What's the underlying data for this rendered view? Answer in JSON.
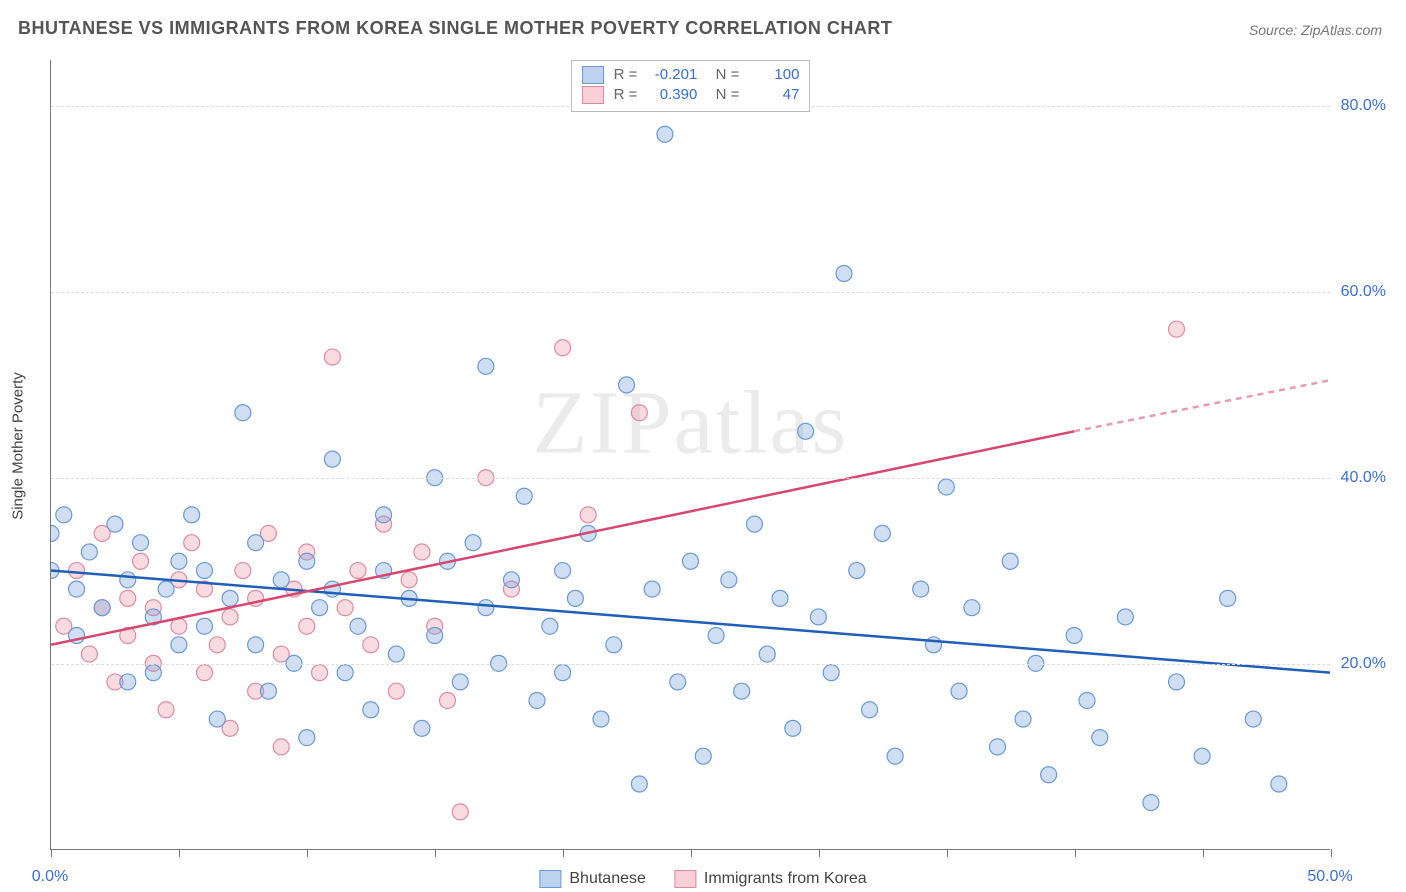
{
  "title": "BHUTANESE VS IMMIGRANTS FROM KOREA SINGLE MOTHER POVERTY CORRELATION CHART",
  "source": "Source: ZipAtlas.com",
  "watermark": "ZIPatlas",
  "y_axis_title": "Single Mother Poverty",
  "chart": {
    "type": "scatter",
    "xlim": [
      0,
      50
    ],
    "ylim": [
      0,
      85
    ],
    "x_ticks_at": [
      0,
      5,
      10,
      15,
      20,
      25,
      30,
      35,
      40,
      45,
      50
    ],
    "x_tick_labels": {
      "0": "0.0%",
      "50": "50.0%"
    },
    "y_gridlines": [
      20,
      40,
      60,
      80
    ],
    "y_tick_labels": {
      "20": "20.0%",
      "40": "40.0%",
      "60": "60.0%",
      "80": "80.0%"
    },
    "background_color": "#ffffff",
    "grid_color": "#dddddd",
    "axis_color": "#777777",
    "marker_radius": 8,
    "marker_stroke_width": 1.2,
    "trend_line_width": 2.5
  },
  "series": {
    "bhutanese": {
      "label": "Bhutanese",
      "fill": "rgba(120,160,220,0.35)",
      "stroke": "#6a9ad4",
      "swatch_fill": "#bcd2ef",
      "swatch_border": "#6a9ad4",
      "R": "-0.201",
      "N": "100",
      "trend": {
        "x1": 0,
        "y1": 30,
        "x2": 50,
        "y2": 19,
        "color": "#1f5fb8",
        "dash": false
      },
      "points": [
        [
          0,
          30
        ],
        [
          0,
          34
        ],
        [
          0.5,
          36
        ],
        [
          1,
          28
        ],
        [
          1,
          23
        ],
        [
          1.5,
          32
        ],
        [
          2,
          26
        ],
        [
          2.5,
          35
        ],
        [
          3,
          29
        ],
        [
          3,
          18
        ],
        [
          3.5,
          33
        ],
        [
          4,
          25
        ],
        [
          4,
          19
        ],
        [
          4.5,
          28
        ],
        [
          5,
          31
        ],
        [
          5,
          22
        ],
        [
          5.5,
          36
        ],
        [
          6,
          24
        ],
        [
          6,
          30
        ],
        [
          6.5,
          14
        ],
        [
          7,
          27
        ],
        [
          7.5,
          47
        ],
        [
          8,
          22
        ],
        [
          8,
          33
        ],
        [
          8.5,
          17
        ],
        [
          9,
          29
        ],
        [
          9.5,
          20
        ],
        [
          10,
          31
        ],
        [
          10,
          12
        ],
        [
          10.5,
          26
        ],
        [
          11,
          28
        ],
        [
          11,
          42
        ],
        [
          11.5,
          19
        ],
        [
          12,
          24
        ],
        [
          12.5,
          15
        ],
        [
          13,
          30
        ],
        [
          13,
          36
        ],
        [
          13.5,
          21
        ],
        [
          14,
          27
        ],
        [
          14.5,
          13
        ],
        [
          15,
          40
        ],
        [
          15,
          23
        ],
        [
          15.5,
          31
        ],
        [
          16,
          18
        ],
        [
          16.5,
          33
        ],
        [
          17,
          52
        ],
        [
          17,
          26
        ],
        [
          17.5,
          20
        ],
        [
          18,
          29
        ],
        [
          18.5,
          38
        ],
        [
          19,
          16
        ],
        [
          19.5,
          24
        ],
        [
          20,
          30
        ],
        [
          20,
          19
        ],
        [
          20.5,
          27
        ],
        [
          21,
          34
        ],
        [
          21.5,
          14
        ],
        [
          22,
          22
        ],
        [
          22.5,
          50
        ],
        [
          23,
          7
        ],
        [
          23.5,
          28
        ],
        [
          24,
          77
        ],
        [
          24.5,
          18
        ],
        [
          25,
          31
        ],
        [
          25.5,
          10
        ],
        [
          26,
          23
        ],
        [
          26.5,
          29
        ],
        [
          27,
          17
        ],
        [
          27.5,
          35
        ],
        [
          28,
          21
        ],
        [
          28.5,
          27
        ],
        [
          29,
          13
        ],
        [
          29.5,
          45
        ],
        [
          30,
          25
        ],
        [
          30.5,
          19
        ],
        [
          31,
          62
        ],
        [
          31.5,
          30
        ],
        [
          32,
          15
        ],
        [
          32.5,
          34
        ],
        [
          33,
          10
        ],
        [
          34,
          28
        ],
        [
          34.5,
          22
        ],
        [
          35,
          39
        ],
        [
          35.5,
          17
        ],
        [
          36,
          26
        ],
        [
          37,
          11
        ],
        [
          37.5,
          31
        ],
        [
          38,
          14
        ],
        [
          38.5,
          20
        ],
        [
          39,
          8
        ],
        [
          40,
          23
        ],
        [
          40.5,
          16
        ],
        [
          41,
          12
        ],
        [
          42,
          25
        ],
        [
          43,
          5
        ],
        [
          44,
          18
        ],
        [
          45,
          10
        ],
        [
          46,
          27
        ],
        [
          47,
          14
        ],
        [
          48,
          7
        ]
      ]
    },
    "korea": {
      "label": "Immigrants from Korea",
      "fill": "rgba(235,150,170,0.35)",
      "stroke": "#e08aa0",
      "swatch_fill": "#f6cfd8",
      "swatch_border": "#e08aa0",
      "R": "0.390",
      "N": "47",
      "trend_solid": {
        "x1": 0,
        "y1": 22,
        "x2": 40,
        "y2": 45,
        "color": "#d6486f"
      },
      "trend_dash": {
        "x1": 40,
        "y1": 45,
        "x2": 50,
        "y2": 50.5,
        "color": "#e79ab0"
      },
      "points": [
        [
          0.5,
          24
        ],
        [
          1,
          30
        ],
        [
          1.5,
          21
        ],
        [
          2,
          26
        ],
        [
          2,
          34
        ],
        [
          2.5,
          18
        ],
        [
          3,
          27
        ],
        [
          3,
          23
        ],
        [
          3.5,
          31
        ],
        [
          4,
          20
        ],
        [
          4,
          26
        ],
        [
          4.5,
          15
        ],
        [
          5,
          29
        ],
        [
          5,
          24
        ],
        [
          5.5,
          33
        ],
        [
          6,
          19
        ],
        [
          6,
          28
        ],
        [
          6.5,
          22
        ],
        [
          7,
          13
        ],
        [
          7,
          25
        ],
        [
          7.5,
          30
        ],
        [
          8,
          17
        ],
        [
          8,
          27
        ],
        [
          8.5,
          34
        ],
        [
          9,
          21
        ],
        [
          9,
          11
        ],
        [
          9.5,
          28
        ],
        [
          10,
          24
        ],
        [
          10,
          32
        ],
        [
          10.5,
          19
        ],
        [
          11,
          53
        ],
        [
          11.5,
          26
        ],
        [
          12,
          30
        ],
        [
          12.5,
          22
        ],
        [
          13,
          35
        ],
        [
          13.5,
          17
        ],
        [
          14,
          29
        ],
        [
          14.5,
          32
        ],
        [
          15,
          24
        ],
        [
          15.5,
          16
        ],
        [
          16,
          4
        ],
        [
          17,
          40
        ],
        [
          18,
          28
        ],
        [
          20,
          54
        ],
        [
          21,
          36
        ],
        [
          23,
          47
        ],
        [
          44,
          56
        ]
      ]
    }
  },
  "legend_bottom": [
    {
      "key": "bhutanese"
    },
    {
      "key": "korea"
    }
  ]
}
